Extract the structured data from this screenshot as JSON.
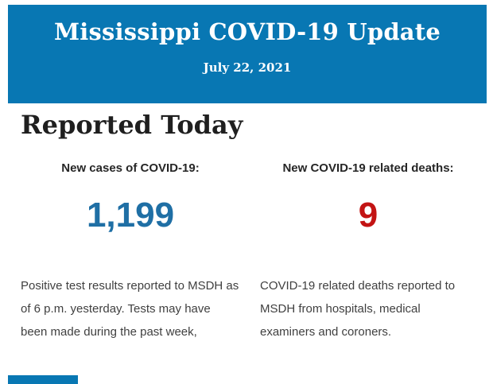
{
  "colors": {
    "header_bg": "#0877b3",
    "header_text": "#ffffff",
    "heading_text": "#1f1f1f",
    "label_text": "#262626",
    "cases_value": "#1f6fa5",
    "deaths_value": "#c31414",
    "body_text": "#404040"
  },
  "header": {
    "title": "Mississippi COVID-19 Update",
    "date": "July 22, 2021"
  },
  "main": {
    "heading": "Reported Today",
    "stats": [
      {
        "label": "New cases of COVID-19:",
        "value": "1,199",
        "description": "Positive test results reported to MSDH as of 6 p.m. yesterday. Tests may have been made during the past week,"
      },
      {
        "label": "New COVID-19 related deaths:",
        "value": "9",
        "description": "COVID-19 related deaths reported to MSDH from hospitals, medical examiners and coroners."
      }
    ]
  }
}
